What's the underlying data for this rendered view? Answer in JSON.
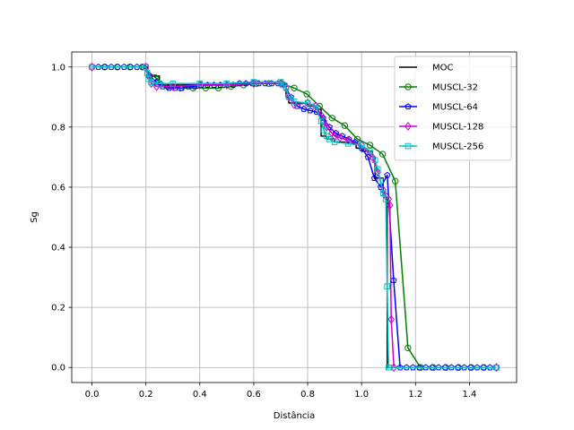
{
  "chart_data": {
    "type": "line",
    "xlabel": "Distância",
    "ylabel": "Sg",
    "xlim": [
      -0.075,
      1.575
    ],
    "ylim": [
      -0.05,
      1.05
    ],
    "grid": true,
    "legend_position": "top-right",
    "xticks": [
      0.0,
      0.2,
      0.4,
      0.6,
      0.8,
      1.0,
      1.2,
      1.4
    ],
    "xtick_labels": [
      "0.0",
      "0.2",
      "0.4",
      "0.6",
      "0.8",
      "1.0",
      "1.2",
      "1.4"
    ],
    "yticks": [
      0.0,
      0.2,
      0.4,
      0.6,
      0.8,
      1.0
    ],
    "ytick_labels": [
      "0.0",
      "0.2",
      "0.4",
      "0.6",
      "0.8",
      "1.0"
    ],
    "series": [
      {
        "name": "MOC",
        "color": "#000000",
        "marker": "none",
        "step": true,
        "x": [
          0.0,
          0.2,
          0.205,
          0.25,
          0.3,
          0.4,
          0.5,
          0.6,
          0.7,
          0.72,
          0.73,
          0.8,
          0.83,
          0.85,
          0.87,
          0.9,
          0.95,
          0.98,
          1.0,
          1.04,
          1.05,
          1.08,
          1.09,
          1.095,
          1.5
        ],
        "y": [
          1.0,
          1.0,
          0.97,
          0.94,
          0.94,
          0.94,
          0.945,
          0.945,
          0.945,
          0.9,
          0.88,
          0.87,
          0.86,
          0.77,
          0.76,
          0.75,
          0.745,
          0.73,
          0.72,
          0.7,
          0.63,
          0.57,
          0.56,
          0.0,
          0.0
        ]
      },
      {
        "name": "MUSCL-32",
        "color": "#008000",
        "marker": "circle",
        "step": false,
        "x": [
          0.0,
          0.0469,
          0.0938,
          0.1406,
          0.1875,
          0.2344,
          0.2813,
          0.3281,
          0.375,
          0.4219,
          0.4688,
          0.5156,
          0.5625,
          0.6094,
          0.6563,
          0.7031,
          0.75,
          0.7969,
          0.8438,
          0.8906,
          0.9375,
          0.9844,
          1.0313,
          1.0781,
          1.125,
          1.1719,
          1.2188,
          1.2656,
          1.3125,
          1.3594,
          1.4063,
          1.4531,
          1.5
        ],
        "y": [
          1.0,
          1.0,
          1.0,
          1.0,
          1.0,
          0.965,
          0.935,
          0.93,
          0.93,
          0.93,
          0.93,
          0.935,
          0.94,
          0.945,
          0.945,
          0.945,
          0.93,
          0.91,
          0.87,
          0.83,
          0.805,
          0.76,
          0.74,
          0.71,
          0.62,
          0.065,
          0.0,
          0.0,
          0.0,
          0.0,
          0.0,
          0.0,
          0.0
        ]
      },
      {
        "name": "MUSCL-64",
        "color": "#0000ff",
        "marker": "pentagon",
        "step": false,
        "x": [
          0.0,
          0.0238,
          0.0476,
          0.0714,
          0.0952,
          0.119,
          0.1429,
          0.1667,
          0.1905,
          0.2143,
          0.2381,
          0.2619,
          0.2857,
          0.3095,
          0.3333,
          0.3571,
          0.381,
          0.4048,
          0.4286,
          0.4524,
          0.4762,
          0.5,
          0.5238,
          0.5476,
          0.5714,
          0.5952,
          0.619,
          0.6429,
          0.6667,
          0.6905,
          0.7143,
          0.7381,
          0.7619,
          0.7857,
          0.8095,
          0.8333,
          0.8571,
          0.881,
          0.9048,
          0.9286,
          0.9524,
          0.9762,
          1.0,
          1.0238,
          1.0476,
          1.0714,
          1.0952,
          1.119,
          1.1429,
          1.1667,
          1.1905,
          1.2143,
          1.2381,
          1.2619,
          1.2857,
          1.3095,
          1.3333,
          1.3571,
          1.381,
          1.4048,
          1.4286,
          1.4524,
          1.4762,
          1.5
        ],
        "y": [
          1.0,
          1.0,
          1.0,
          1.0,
          1.0,
          1.0,
          1.0,
          1.0,
          1.0,
          0.97,
          0.95,
          0.935,
          0.93,
          0.93,
          0.93,
          0.935,
          0.935,
          0.94,
          0.94,
          0.94,
          0.94,
          0.94,
          0.94,
          0.945,
          0.945,
          0.945,
          0.945,
          0.945,
          0.945,
          0.945,
          0.94,
          0.9,
          0.87,
          0.86,
          0.855,
          0.85,
          0.83,
          0.8,
          0.78,
          0.77,
          0.76,
          0.75,
          0.73,
          0.7,
          0.63,
          0.6,
          0.64,
          0.29,
          0.0,
          0.0,
          0.0,
          0.0,
          0.0,
          0.0,
          0.0,
          0.0,
          0.0,
          0.0,
          0.0,
          0.0,
          0.0,
          0.0,
          0.0,
          0.0
        ]
      },
      {
        "name": "MUSCL-128",
        "color": "#cc00cc",
        "marker": "diamond",
        "step": false,
        "x": [
          0.0,
          0.2,
          0.21,
          0.22,
          0.24,
          0.3,
          0.4,
          0.5,
          0.6,
          0.7,
          0.72,
          0.73,
          0.75,
          0.8,
          0.83,
          0.85,
          0.86,
          0.87,
          0.89,
          0.9,
          0.92,
          0.95,
          1.0,
          1.04,
          1.06,
          1.08,
          1.09,
          1.1,
          1.105,
          1.11,
          1.12,
          1.5
        ],
        "y": [
          1.0,
          1.0,
          0.97,
          0.945,
          0.935,
          0.935,
          0.94,
          0.94,
          0.945,
          0.945,
          0.93,
          0.9,
          0.875,
          0.88,
          0.87,
          0.84,
          0.82,
          0.8,
          0.78,
          0.77,
          0.765,
          0.755,
          0.74,
          0.7,
          0.65,
          0.59,
          0.57,
          0.56,
          0.54,
          0.16,
          0.0,
          0.0
        ]
      },
      {
        "name": "MUSCL-256",
        "color": "#00bfbf",
        "marker": "square",
        "step": false,
        "x": [
          0.0,
          0.2,
          0.205,
          0.21,
          0.22,
          0.25,
          0.3,
          0.4,
          0.5,
          0.6,
          0.7,
          0.71,
          0.72,
          0.73,
          0.75,
          0.8,
          0.83,
          0.85,
          0.86,
          0.87,
          0.88,
          0.9,
          0.95,
          1.0,
          1.03,
          1.05,
          1.06,
          1.07,
          1.08,
          1.09,
          1.095,
          1.1,
          1.105,
          1.5
        ],
        "y": [
          1.0,
          1.0,
          0.98,
          0.96,
          0.95,
          0.945,
          0.945,
          0.945,
          0.945,
          0.95,
          0.95,
          0.94,
          0.93,
          0.9,
          0.885,
          0.88,
          0.87,
          0.82,
          0.79,
          0.77,
          0.76,
          0.75,
          0.745,
          0.74,
          0.72,
          0.69,
          0.66,
          0.62,
          0.58,
          0.56,
          0.27,
          0.0,
          0.0,
          0.0
        ]
      }
    ]
  }
}
